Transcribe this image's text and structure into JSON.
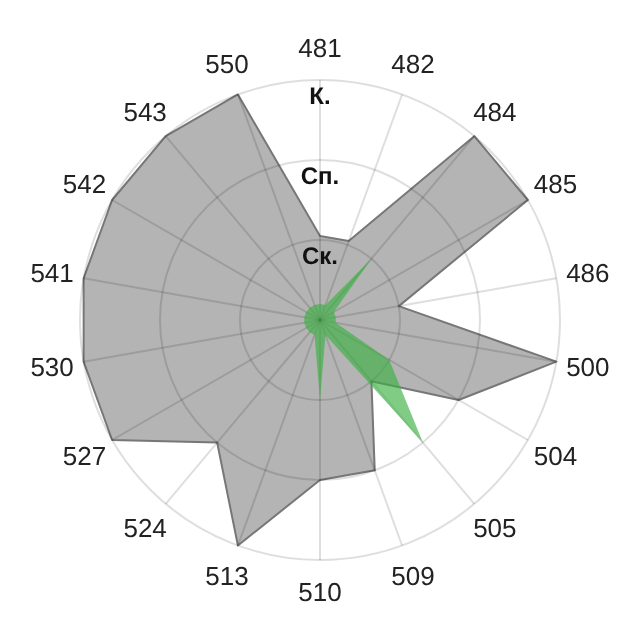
{
  "chart_data": {
    "type": "radar",
    "categories": [
      "481",
      "482",
      "484",
      "485",
      "486",
      "500",
      "504",
      "505",
      "509",
      "510",
      "513",
      "524",
      "527",
      "530",
      "541",
      "542",
      "543",
      "550"
    ],
    "ylim": [
      0,
      3
    ],
    "yticks": [
      {
        "value": 1,
        "label": "Ск."
      },
      {
        "value": 2,
        "label": "Сп."
      },
      {
        "value": 3,
        "label": "К."
      }
    ],
    "grid": true,
    "series": [
      {
        "color": "#b4b4b4",
        "values": [
          1.05,
          1.05,
          3,
          3,
          1,
          3,
          2,
          1,
          2,
          2,
          3,
          2,
          3,
          3,
          3,
          3,
          3,
          3
        ]
      },
      {
        "color": "#3cb043",
        "values": [
          0.2,
          0.2,
          1,
          0.2,
          0.2,
          0.2,
          1,
          2,
          0.2,
          1,
          0.2,
          0.2,
          0.2,
          0.2,
          0.2,
          0.2,
          0.2,
          0.2
        ]
      }
    ]
  }
}
